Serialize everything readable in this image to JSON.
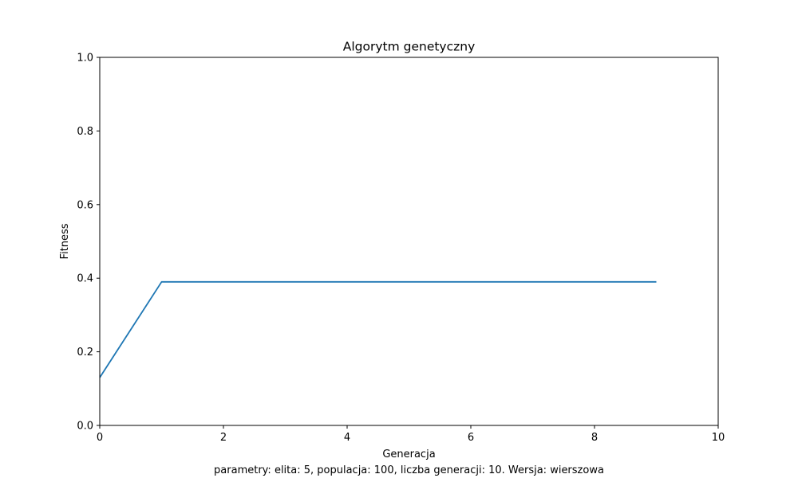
{
  "chart_data": {
    "type": "line",
    "title": "Algorytm genetyczny",
    "xlabel": "Generacja",
    "ylabel": "Fitness",
    "caption": "parametry: elita: 5, populacja: 100, liczba generacji: 10. Wersja: wierszowa",
    "xlim": [
      0,
      10
    ],
    "ylim": [
      0,
      1
    ],
    "xticks": [
      0,
      2,
      4,
      6,
      8,
      10
    ],
    "xtick_labels": [
      "0",
      "2",
      "4",
      "6",
      "8",
      "10"
    ],
    "yticks": [
      0,
      0.2,
      0.4,
      0.6,
      0.8,
      1.0
    ],
    "ytick_labels": [
      "0.0",
      "0.2",
      "0.4",
      "0.6",
      "0.8",
      "1.0"
    ],
    "grid": false,
    "series": [
      {
        "color": "#1f77b4",
        "x": [
          0,
          1,
          2,
          3,
          4,
          5,
          6,
          7,
          8,
          9
        ],
        "y": [
          0.13,
          0.39,
          0.39,
          0.39,
          0.39,
          0.39,
          0.39,
          0.39,
          0.39,
          0.39
        ]
      }
    ]
  }
}
